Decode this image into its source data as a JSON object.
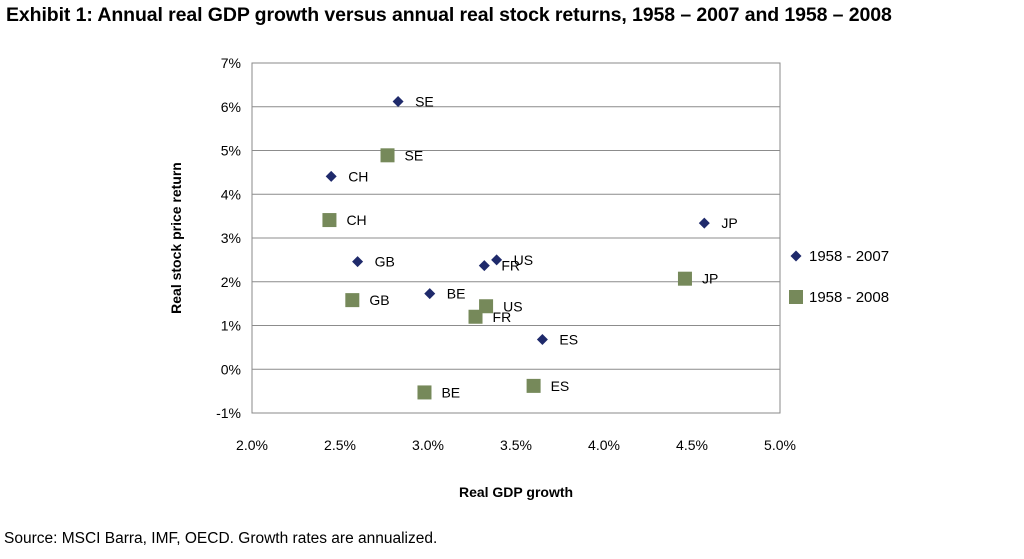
{
  "title": "Exhibit 1: Annual real GDP growth versus annual real stock returns, 1958 – 2007 and 1958 – 2008",
  "source": "Source: MSCI Barra, IMF, OECD. Growth rates are annualized.",
  "chart_data": {
    "type": "scatter",
    "xlabel": "Real GDP growth",
    "ylabel": "Real stock price return",
    "xlim": [
      0.02,
      0.05
    ],
    "ylim": [
      -0.01,
      0.07
    ],
    "x_ticks": [
      0.02,
      0.025,
      0.03,
      0.035,
      0.04,
      0.045,
      0.05
    ],
    "x_tick_labels": [
      "2.0%",
      "2.5%",
      "3.0%",
      "3.5%",
      "4.0%",
      "4.5%",
      "5.0%"
    ],
    "y_ticks": [
      -0.01,
      0,
      0.01,
      0.02,
      0.03,
      0.04,
      0.05,
      0.06,
      0.07
    ],
    "y_tick_labels": [
      "-1%",
      "0%",
      "1%",
      "2%",
      "3%",
      "4%",
      "5%",
      "6%",
      "7%"
    ],
    "grid": "horizontal",
    "legend_position": "right",
    "series": [
      {
        "name": "1958 - 2007",
        "marker": "diamond",
        "color": "#1f2a6b",
        "points": [
          {
            "label": "SE",
            "x": 0.0283,
            "y": 0.0612
          },
          {
            "label": "CH",
            "x": 0.0245,
            "y": 0.0441
          },
          {
            "label": "GB",
            "x": 0.026,
            "y": 0.0246
          },
          {
            "label": "US",
            "x": 0.0339,
            "y": 0.025
          },
          {
            "label": "FR",
            "x": 0.0332,
            "y": 0.0237
          },
          {
            "label": "BE",
            "x": 0.0301,
            "y": 0.0173
          },
          {
            "label": "ES",
            "x": 0.0365,
            "y": 0.0068
          },
          {
            "label": "JP",
            "x": 0.0457,
            "y": 0.0334
          }
        ]
      },
      {
        "name": "1958 - 2008",
        "marker": "square",
        "color": "#76895a",
        "points": [
          {
            "label": "SE",
            "x": 0.0277,
            "y": 0.0489
          },
          {
            "label": "CH",
            "x": 0.0244,
            "y": 0.0341
          },
          {
            "label": "GB",
            "x": 0.0257,
            "y": 0.0158
          },
          {
            "label": "US",
            "x": 0.0333,
            "y": 0.0144
          },
          {
            "label": "FR",
            "x": 0.0327,
            "y": 0.012
          },
          {
            "label": "BE",
            "x": 0.0298,
            "y": -0.0053
          },
          {
            "label": "ES",
            "x": 0.036,
            "y": -0.0038
          },
          {
            "label": "JP",
            "x": 0.0446,
            "y": 0.0207
          }
        ]
      }
    ]
  }
}
